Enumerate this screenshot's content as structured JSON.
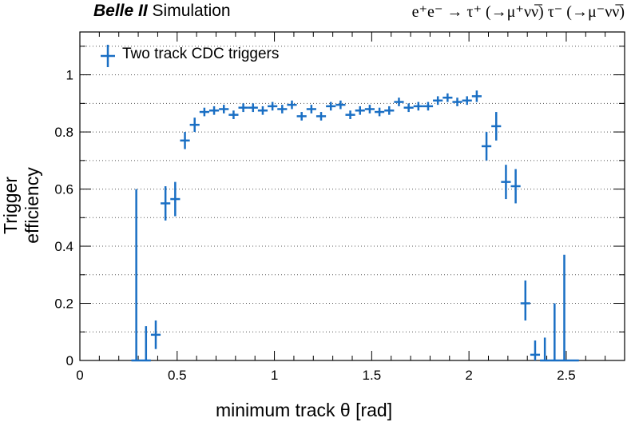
{
  "header": {
    "experiment": "Belle II",
    "tag": "Simulation",
    "process": "e⁺e⁻ → τ⁺ (→μ⁺νν̅) τ⁻ (→μ⁻νν̅)"
  },
  "colors": {
    "series": "#1a6fc4",
    "grid": "#555555"
  },
  "chart_data": {
    "type": "scatter",
    "xlabel": "minimum track θ [rad]",
    "ylabel": "Trigger efficiency",
    "xlim": [
      0,
      2.8
    ],
    "ylim": [
      0,
      1.15
    ],
    "xticks": [
      0,
      0.5,
      1,
      1.5,
      2,
      2.5
    ],
    "xtick_labels": [
      "0",
      "0.5",
      "1",
      "1.5",
      "2",
      "2.5"
    ],
    "yticks": [
      0,
      0.2,
      0.4,
      0.6,
      0.8,
      1
    ],
    "ytick_labels": [
      "0",
      "0.2",
      "0.4",
      "0.6",
      "0.8",
      "1"
    ],
    "grid": "horizontal dotted",
    "legend_position": "top-left",
    "bin_half_width": 0.025,
    "series": [
      {
        "name": "Two track CDC triggers",
        "x": [
          0.29,
          0.34,
          0.39,
          0.44,
          0.49,
          0.54,
          0.59,
          0.64,
          0.69,
          0.74,
          0.79,
          0.84,
          0.89,
          0.94,
          0.99,
          1.04,
          1.09,
          1.14,
          1.19,
          1.24,
          1.29,
          1.34,
          1.39,
          1.44,
          1.49,
          1.54,
          1.59,
          1.64,
          1.69,
          1.74,
          1.79,
          1.84,
          1.89,
          1.94,
          1.99,
          2.04,
          2.09,
          2.14,
          2.19,
          2.24,
          2.29,
          2.34,
          2.39,
          2.44,
          2.49,
          2.54
        ],
        "y": [
          0.0,
          0.0,
          0.09,
          0.55,
          0.565,
          0.77,
          0.825,
          0.87,
          0.875,
          0.88,
          0.86,
          0.885,
          0.885,
          0.875,
          0.89,
          0.88,
          0.895,
          0.855,
          0.88,
          0.855,
          0.89,
          0.895,
          0.86,
          0.875,
          0.88,
          0.87,
          0.875,
          0.905,
          0.885,
          0.89,
          0.89,
          0.91,
          0.92,
          0.905,
          0.91,
          0.925,
          0.75,
          0.82,
          0.625,
          0.61,
          0.2,
          0.02,
          0.0,
          0.0,
          0.0,
          0.0
        ],
        "err_low": [
          0.0,
          0.0,
          0.05,
          0.06,
          0.06,
          0.03,
          0.025,
          0.015,
          0.015,
          0.015,
          0.015,
          0.015,
          0.015,
          0.015,
          0.015,
          0.015,
          0.015,
          0.015,
          0.015,
          0.015,
          0.015,
          0.015,
          0.015,
          0.015,
          0.015,
          0.015,
          0.015,
          0.015,
          0.015,
          0.015,
          0.015,
          0.015,
          0.015,
          0.015,
          0.015,
          0.02,
          0.05,
          0.05,
          0.06,
          0.06,
          0.06,
          0.02,
          0.0,
          0.0,
          0.0,
          0.0
        ],
        "err_high": [
          0.6,
          0.12,
          0.05,
          0.06,
          0.06,
          0.03,
          0.025,
          0.015,
          0.015,
          0.015,
          0.015,
          0.015,
          0.015,
          0.015,
          0.015,
          0.015,
          0.015,
          0.015,
          0.015,
          0.015,
          0.015,
          0.015,
          0.015,
          0.015,
          0.015,
          0.015,
          0.015,
          0.015,
          0.015,
          0.015,
          0.015,
          0.015,
          0.015,
          0.015,
          0.015,
          0.02,
          0.05,
          0.05,
          0.06,
          0.06,
          0.08,
          0.05,
          0.08,
          0.2,
          0.37,
          0.0
        ]
      }
    ]
  }
}
